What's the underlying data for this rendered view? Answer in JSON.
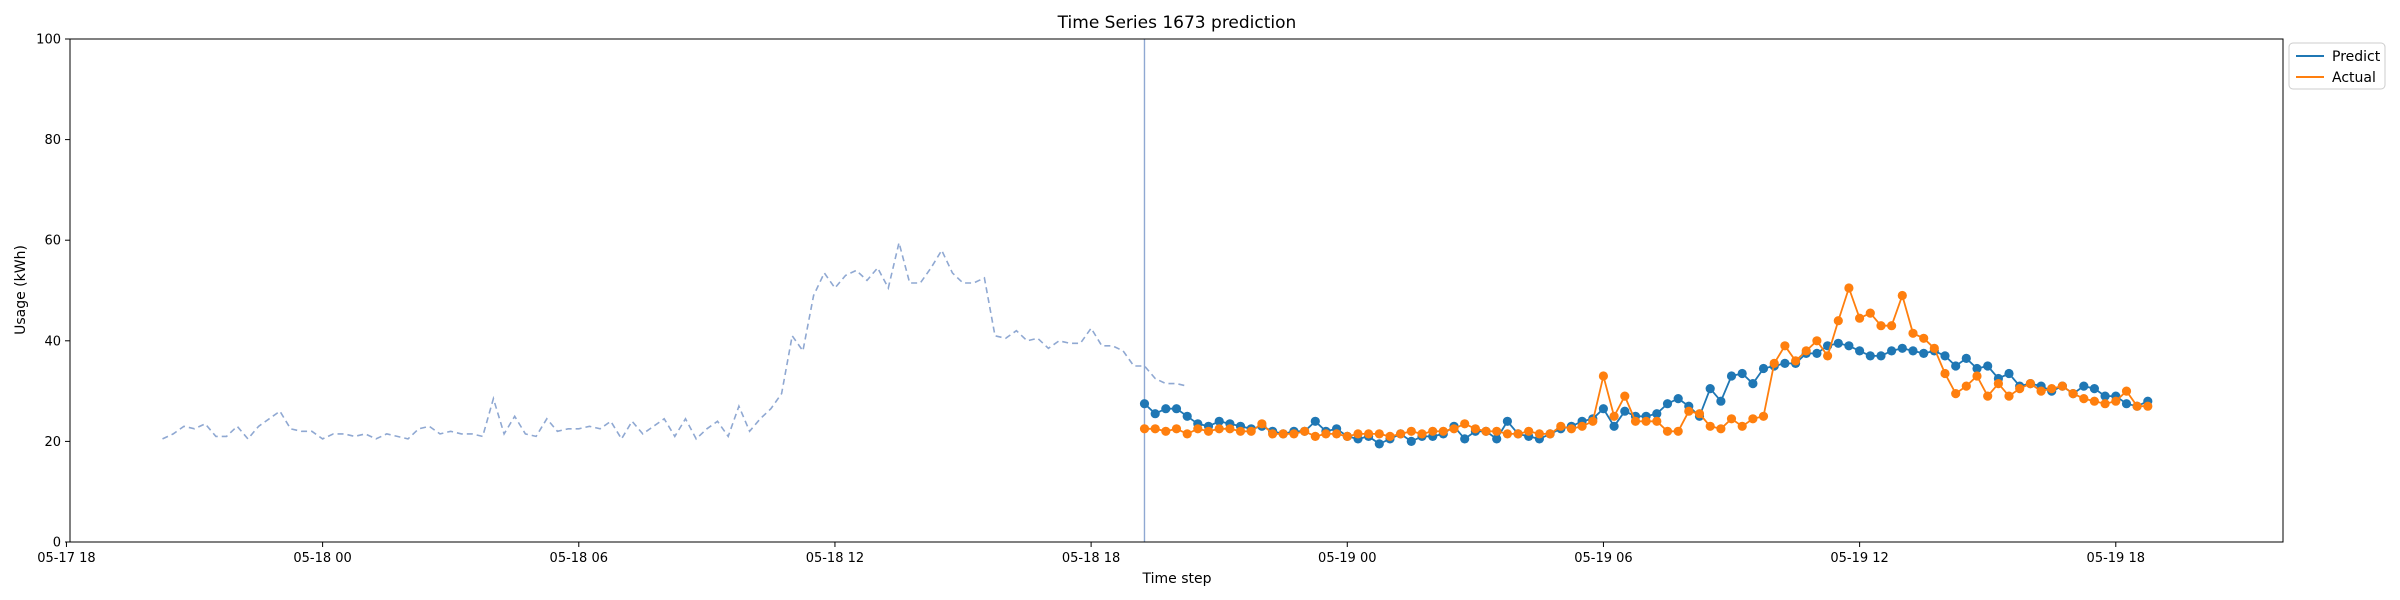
{
  "chart_data": {
    "type": "line",
    "title": "Time Series 1673 prediction",
    "xlabel": "Time step",
    "ylabel": "Usage (kWh)",
    "ylim": [
      0,
      100
    ],
    "xlim": [
      "05-17 18:05",
      "05-19 21:55"
    ],
    "y_ticks": [
      0,
      20,
      40,
      60,
      80,
      100
    ],
    "x_ticks": [
      {
        "t": "05-17 18:00",
        "label": "05-17 18"
      },
      {
        "t": "05-18 00:00",
        "label": "05-18 00"
      },
      {
        "t": "05-18 06:00",
        "label": "05-18 06"
      },
      {
        "t": "05-18 12:00",
        "label": "05-18 12"
      },
      {
        "t": "05-18 18:00",
        "label": "05-18 18"
      },
      {
        "t": "05-19 00:00",
        "label": "05-19 00"
      },
      {
        "t": "05-19 06:00",
        "label": "05-19 06"
      },
      {
        "t": "05-19 12:00",
        "label": "05-19 12"
      },
      {
        "t": "05-19 18:00",
        "label": "05-19 18"
      }
    ],
    "grid": false,
    "legend_position": "upper-right-outside",
    "forecast_start": "05-18 19:15",
    "history": {
      "start": "05-17 20:15",
      "step_minutes": 15,
      "style": "dashed",
      "color": "#8fa8d2",
      "values": [
        20.5,
        21.5,
        23,
        22.5,
        23.5,
        21,
        21,
        23,
        20.5,
        23,
        24.5,
        26,
        22.5,
        22,
        22,
        20.5,
        21.5,
        21.5,
        21,
        21.5,
        20.5,
        21.5,
        21,
        20.5,
        22.5,
        23,
        21.5,
        22,
        21.5,
        21.5,
        21,
        28.5,
        21.5,
        25,
        21.5,
        21,
        24.5,
        22,
        22.5,
        22.5,
        23,
        22.5,
        24,
        20.5,
        24,
        21.5,
        23,
        24.5,
        21,
        24.5,
        20.5,
        22.5,
        24,
        21,
        27,
        22,
        24.5,
        26.5,
        29.5,
        41,
        38,
        49,
        53.5,
        50.5,
        53,
        54,
        52,
        54.5,
        50.5,
        59.5,
        51.5,
        51.5,
        54.5,
        58,
        53.5,
        51.5,
        51.5,
        52.5,
        41,
        40.5,
        42,
        40,
        40.5,
        38.5,
        40,
        39.5,
        39.5,
        42.5,
        39,
        39,
        38,
        35,
        35,
        32.5,
        31.5,
        31.5,
        31
      ]
    },
    "series": [
      {
        "name": "Predict",
        "color": "#1f77b4",
        "start": "05-18 19:15",
        "step_minutes": 15,
        "values": [
          27.5,
          25.5,
          26.5,
          26.5,
          25,
          23.5,
          23,
          24,
          23.5,
          23,
          22.5,
          23,
          22,
          21.5,
          22,
          22,
          24,
          22,
          22.5,
          21,
          20.5,
          21,
          19.5,
          20.5,
          21.5,
          20,
          21,
          21,
          21.5,
          23,
          20.5,
          22,
          22,
          20.5,
          24,
          21.5,
          21,
          20.5,
          21.5,
          22.5,
          23,
          24,
          24.5,
          26.5,
          23,
          26,
          25,
          25,
          25.5,
          27.5,
          28.5,
          27,
          25,
          30.5,
          28,
          33,
          33.5,
          31.5,
          34.5,
          35,
          35.5,
          35.5,
          37.5,
          37.5,
          39,
          39.5,
          39,
          38,
          37,
          37,
          38,
          38.5,
          38,
          37.5,
          38,
          37,
          35,
          36.5,
          34.5,
          35,
          32.5,
          33.5,
          31,
          31.5,
          31,
          30,
          31,
          29.5,
          31,
          30.5,
          29,
          29,
          27.5,
          27,
          28
        ]
      },
      {
        "name": "Actual",
        "color": "#ff7f0e",
        "start": "05-18 19:15",
        "step_minutes": 15,
        "values": [
          22.5,
          22.5,
          22,
          22.5,
          21.5,
          22.5,
          22,
          22.5,
          22.5,
          22,
          22,
          23.5,
          21.5,
          21.5,
          21.5,
          22,
          21,
          21.5,
          21.5,
          21,
          21.5,
          21.5,
          21.5,
          21,
          21.5,
          22,
          21.5,
          22,
          22,
          22.5,
          23.5,
          22.5,
          22,
          22,
          21.5,
          21.5,
          22,
          21.5,
          21.5,
          23,
          22.5,
          23,
          24,
          33,
          25,
          29,
          24,
          24,
          24,
          22,
          22,
          26,
          25.5,
          23,
          22.5,
          24.5,
          23,
          24.5,
          25,
          35.5,
          39,
          36,
          38,
          40,
          37,
          44,
          50.5,
          44.5,
          45.5,
          43,
          43,
          49,
          41.5,
          40.5,
          38.5,
          33.5,
          29.5,
          31,
          33,
          29,
          31.5,
          29,
          30.5,
          31.5,
          30,
          30.5,
          31,
          29.5,
          28.5,
          28,
          27.5,
          28,
          30,
          27,
          27
        ]
      }
    ]
  }
}
